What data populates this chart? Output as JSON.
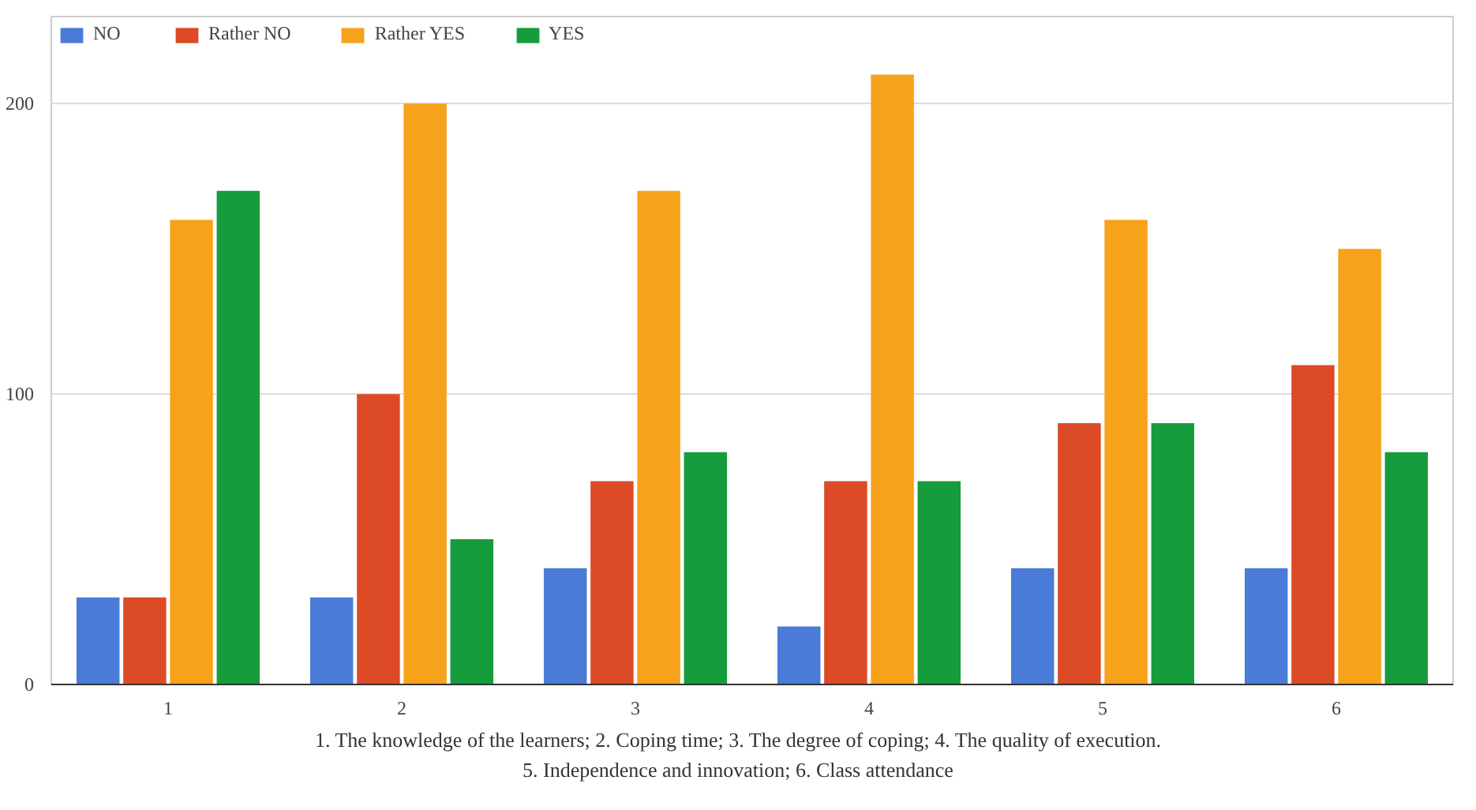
{
  "chart_data": {
    "type": "bar",
    "categories": [
      "1",
      "2",
      "3",
      "4",
      "5",
      "6"
    ],
    "series": [
      {
        "name": "NO",
        "color": "#4a7bd6",
        "values": [
          30,
          30,
          40,
          20,
          40,
          40
        ]
      },
      {
        "name": "Rather NO",
        "color": "#dc4a26",
        "values": [
          30,
          100,
          70,
          70,
          90,
          110
        ]
      },
      {
        "name": "Rather YES",
        "color": "#f7a21b",
        "values": [
          160,
          200,
          170,
          210,
          160,
          150
        ]
      },
      {
        "name": "YES",
        "color": "#169c3c",
        "values": [
          170,
          50,
          80,
          70,
          90,
          80
        ]
      }
    ],
    "ylim": [
      0,
      230
    ],
    "yticks": [
      0,
      100,
      200
    ],
    "grid": "y",
    "legend": "top left",
    "annotations": [
      "1. The knowledge of the learners; 2. Coping time; 3. The degree of coping; 4. The quality of execution.",
      "5. Independence and innovation; 6. Class attendance"
    ]
  }
}
